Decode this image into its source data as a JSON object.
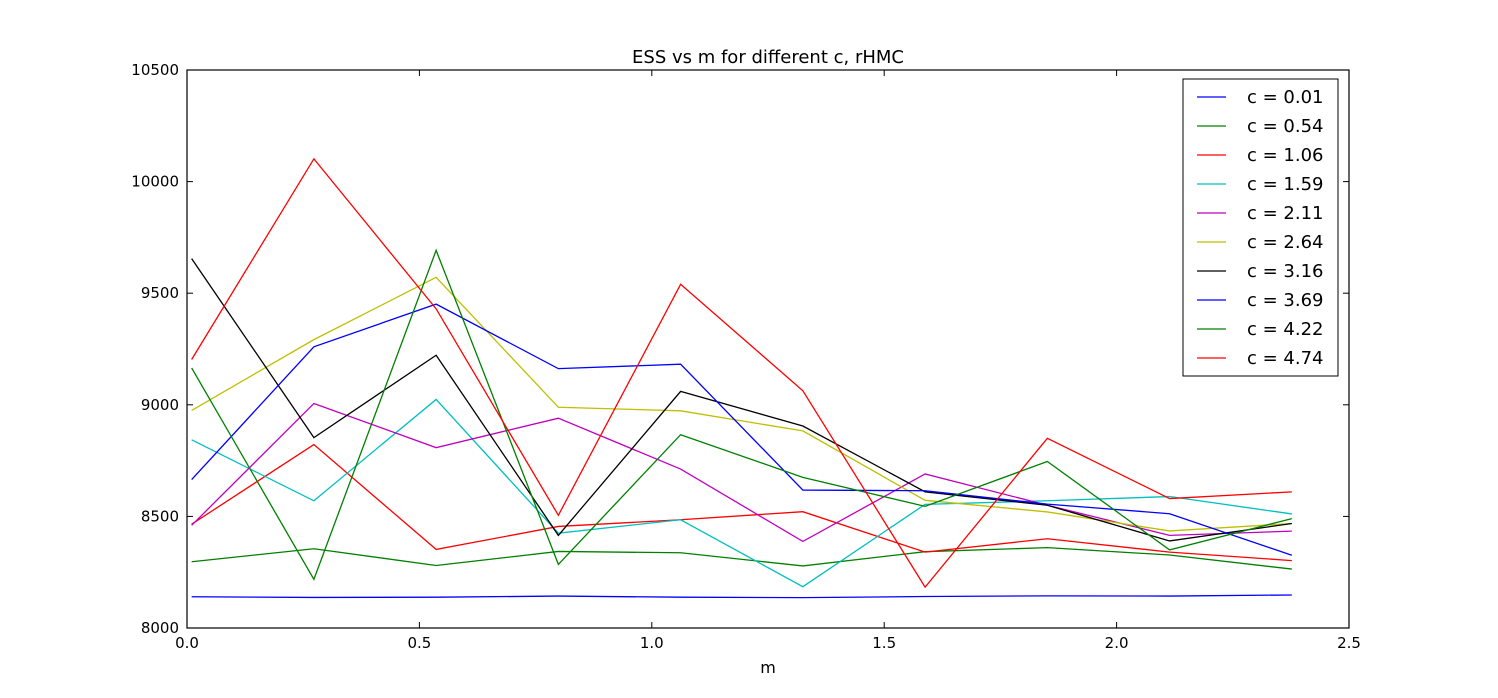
{
  "chart_data": {
    "type": "line",
    "title": "ESS vs m for different c, rHMC",
    "xlabel": "m",
    "ylabel": "",
    "xlim": [
      0.0,
      2.5
    ],
    "ylim": [
      8000,
      10500
    ],
    "xticks": [
      0.0,
      0.5,
      1.0,
      1.5,
      2.0,
      2.5
    ],
    "xtick_labels": [
      "0.0",
      "0.5",
      "1.0",
      "1.5",
      "2.0",
      "2.5"
    ],
    "yticks": [
      8000,
      8500,
      9000,
      9500,
      10000,
      10500
    ],
    "ytick_labels": [
      "8000",
      "8500",
      "9000",
      "9500",
      "10000",
      "10500"
    ],
    "grid": false,
    "legend_position": "top-right",
    "x": [
      0.01,
      0.273,
      0.536,
      0.799,
      1.062,
      1.325,
      1.588,
      1.851,
      2.114,
      2.377
    ],
    "series": [
      {
        "name": "c = 0.01",
        "color": "#0000ff",
        "values": [
          8140,
          8137,
          8138,
          8143,
          8138,
          8136,
          8141,
          8144,
          8143,
          8148
        ]
      },
      {
        "name": "c = 0.54",
        "color": "#008000",
        "values": [
          8297,
          8355,
          8280,
          8343,
          8337,
          8278,
          8342,
          8360,
          8327,
          8264
        ]
      },
      {
        "name": "c = 1.06",
        "color": "#ff0000",
        "values": [
          8465,
          8822,
          8352,
          8455,
          8485,
          8521,
          8340,
          8400,
          8340,
          8302
        ]
      },
      {
        "name": "c = 1.59",
        "color": "#00bfbf",
        "values": [
          8843,
          8570,
          9024,
          8425,
          8485,
          8185,
          8554,
          8570,
          8589,
          8511
        ]
      },
      {
        "name": "c = 2.11",
        "color": "#bf00bf",
        "values": [
          8460,
          9006,
          8808,
          8940,
          8712,
          8388,
          8690,
          8550,
          8415,
          8434
        ]
      },
      {
        "name": "c = 2.64",
        "color": "#bfbf00",
        "values": [
          8975,
          9292,
          9571,
          8989,
          8973,
          8883,
          8572,
          8520,
          8435,
          8468
        ]
      },
      {
        "name": "c = 3.16",
        "color": "#000000",
        "values": [
          9655,
          8853,
          9222,
          8415,
          9060,
          8905,
          8610,
          8550,
          8390,
          8468
        ]
      },
      {
        "name": "c = 3.69",
        "color": "#0000ff",
        "values": [
          8665,
          9260,
          9451,
          9162,
          9182,
          8618,
          8615,
          8555,
          8512,
          8326
        ]
      },
      {
        "name": "c = 4.22",
        "color": "#008000",
        "values": [
          9165,
          8218,
          9692,
          8285,
          8866,
          8675,
          8545,
          8746,
          8350,
          8490
        ]
      },
      {
        "name": "c = 4.74",
        "color": "#ff0000",
        "values": [
          9203,
          10102,
          9430,
          8505,
          9540,
          9063,
          8183,
          8850,
          8580,
          8610
        ]
      }
    ]
  }
}
